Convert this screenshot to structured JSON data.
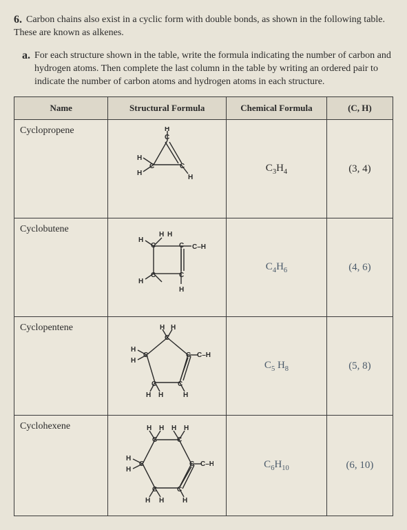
{
  "question": {
    "number": "6.",
    "intro": "Carbon chains also exist in a cyclic form with double bonds, as shown in the following table. These are known as alkenes.",
    "sub_letter": "a.",
    "sub_text": "For each structure shown in the table, write the formula indicating the number of carbon and hydrogen atoms. Then complete the last column in the table by writing an ordered pair to indicate the number of carbon atoms and hydrogen atoms in each structure."
  },
  "table": {
    "headers": [
      "Name",
      "Structural Formula",
      "Chemical Formula",
      "(C, H)"
    ],
    "rows": [
      {
        "name": "Cyclopropene",
        "chem_html": "C<span class='sub'>3</span>H<span class='sub'>4</span>",
        "pair": "(3, 4)",
        "chem_handwritten": false,
        "pair_handwritten": false
      },
      {
        "name": "Cyclobutene",
        "chem_html": "C<span class='sub'>4</span>H<span class='sub'>6</span>",
        "pair": "(4, 6)",
        "chem_handwritten": true,
        "pair_handwritten": true
      },
      {
        "name": "Cyclopentene",
        "chem_html": "C<span class='sub'>5</span> H<span class='sub'>8</span>",
        "pair": "(5, 8)",
        "chem_handwritten": true,
        "pair_handwritten": true
      },
      {
        "name": "Cyclohexene",
        "chem_html": "C<span class='sub'>6</span>H<span class='sub'>10</span>",
        "pair": "(6, 10)",
        "chem_handwritten": true,
        "pair_handwritten": true
      }
    ]
  },
  "colors": {
    "page_bg": "#e8e4d8",
    "table_bg": "#ebe7db",
    "header_bg": "#ddd8ca",
    "border": "#3a3a3a",
    "text": "#2a2a2a",
    "handwriting": "#4a5a6a"
  }
}
